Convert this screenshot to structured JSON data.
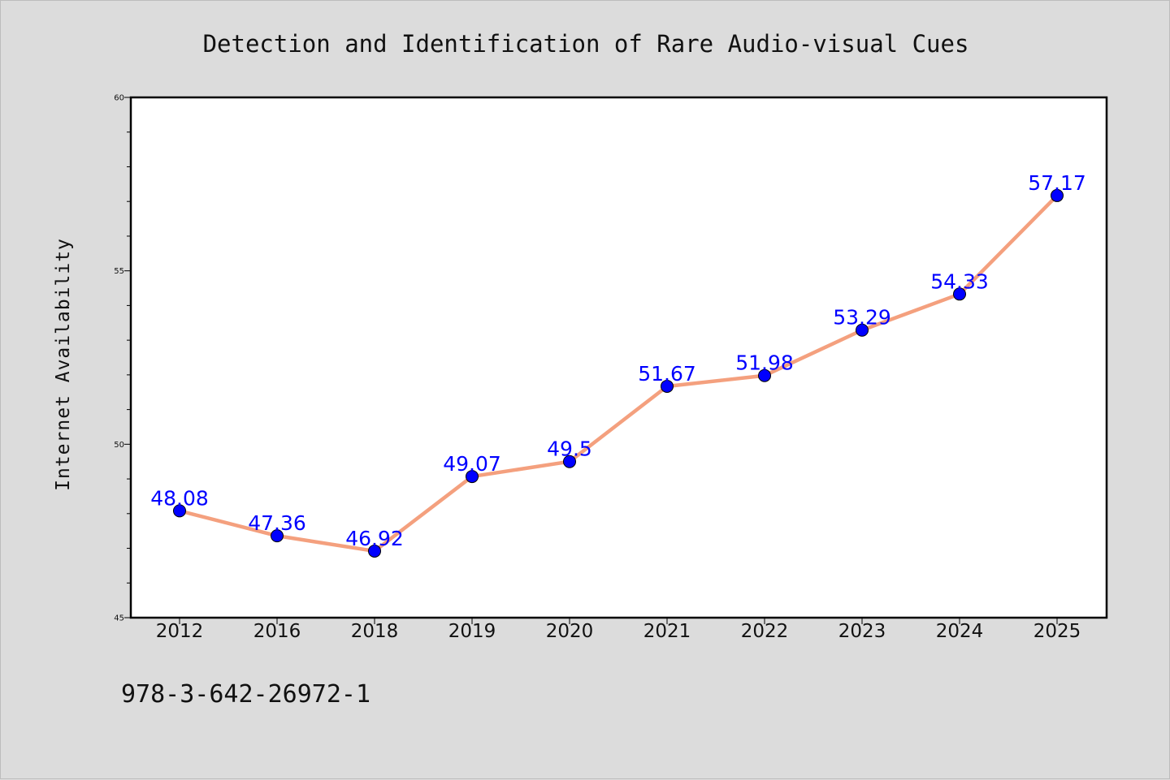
{
  "chart_data": {
    "type": "line",
    "title": "Detection and Identification of Rare Audio-visual Cues",
    "xlabel": "",
    "ylabel": "Internet Availability",
    "categories": [
      "2012",
      "2016",
      "2018",
      "2019",
      "2020",
      "2021",
      "2022",
      "2023",
      "2024",
      "2025"
    ],
    "values": [
      48.08,
      47.36,
      46.92,
      49.07,
      49.5,
      51.67,
      51.98,
      53.29,
      54.33,
      57.17
    ],
    "data_labels": [
      "48.08",
      "47.36",
      "46.92",
      "49.07",
      "49.5",
      "51.67",
      "51.98",
      "53.29",
      "54.33",
      "57.17"
    ],
    "ylim": [
      45,
      60
    ],
    "yticks": [
      45,
      50,
      55,
      60
    ],
    "ytick_labels": [
      "45",
      "50",
      "55",
      "60"
    ],
    "grid": false,
    "line_color": "#f4a07e",
    "marker_color": "#0000ff",
    "label_color": "#0000ff"
  },
  "footer": {
    "isbn": "978-3-642-26972-1"
  }
}
